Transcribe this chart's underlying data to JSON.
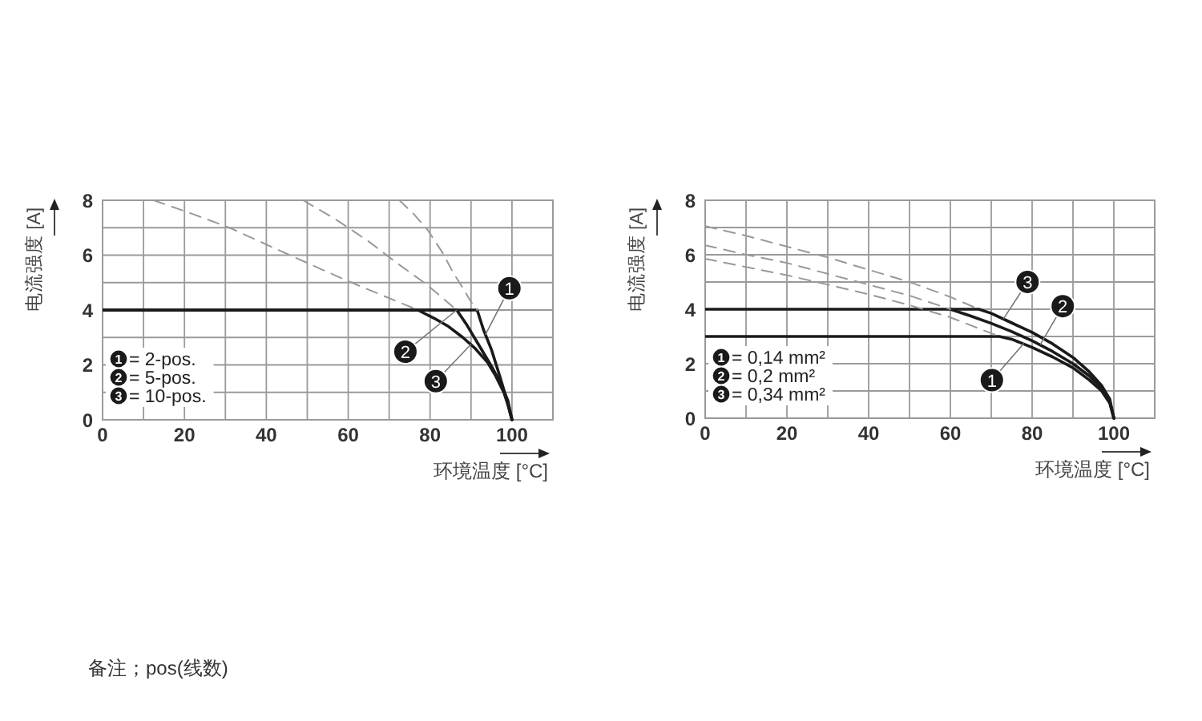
{
  "chart_data": [
    {
      "type": "line",
      "xlabel": "环境温度 [°C]",
      "ylabel": "电流强度 [A]",
      "xlim": [
        0,
        110
      ],
      "ylim": [
        0,
        8
      ],
      "xticks": [
        0,
        {
          "value": 10,
          "label": null
        },
        20,
        {
          "value": 30,
          "label": null
        },
        40,
        {
          "value": 50,
          "label": null
        },
        60,
        {
          "value": 70,
          "label": null
        },
        80,
        {
          "value": 90,
          "label": null
        },
        100,
        {
          "value": 110,
          "label": null
        }
      ],
      "yticks": [
        0,
        {
          "value": 1,
          "label": null
        },
        2,
        {
          "value": 3,
          "label": null
        },
        4,
        {
          "value": 5,
          "label": null
        },
        6,
        {
          "value": 7,
          "label": null
        },
        8
      ],
      "grid": true,
      "legend": "bottom left",
      "series": [
        {
          "name": "= 2-pos.",
          "color": "#1a1a1a",
          "x": [
            0,
            91.5,
            93,
            95,
            97,
            98.5,
            100
          ],
          "values": [
            4,
            4,
            3.3,
            2.55,
            1.6,
            0.85,
            0
          ]
        },
        {
          "name": "= 5-pos.",
          "color": "#1a1a1a",
          "x": [
            0,
            86.5,
            89,
            92,
            95,
            97,
            99,
            100
          ],
          "values": [
            4,
            4,
            3.45,
            2.7,
            1.95,
            1.4,
            0.7,
            0
          ]
        },
        {
          "name": "= 10-pos.",
          "color": "#1a1a1a",
          "x": [
            0,
            77,
            81,
            84.5,
            88,
            91,
            94,
            96,
            98,
            99,
            100
          ],
          "values": [
            4,
            4,
            3.7,
            3.4,
            3.0,
            2.6,
            2.1,
            1.6,
            1.0,
            0.55,
            0
          ]
        },
        {
          "color": "#999999",
          "line_style": "dashed",
          "x": [
            72.5,
            76,
            79.5,
            83,
            85.5,
            88,
            90,
            91.5
          ],
          "values": [
            8,
            7.5,
            6.9,
            6.1,
            5.4,
            4.8,
            4.3,
            4
          ]
        },
        {
          "color": "#999999",
          "line_style": "dashed",
          "x": [
            49,
            57,
            65,
            72,
            79,
            86.5
          ],
          "values": [
            8,
            7.3,
            6.5,
            5.7,
            4.95,
            4
          ]
        },
        {
          "color": "#999999",
          "line_style": "dashed",
          "x": [
            12.5,
            22,
            31,
            45,
            60,
            77
          ],
          "values": [
            8,
            7.5,
            7.0,
            6.05,
            5.05,
            4
          ]
        }
      ],
      "annotations": [
        {
          "text": "1",
          "x": 93.5,
          "y": 3.1
        },
        {
          "text": "2",
          "x": 86.5,
          "y": 4
        },
        {
          "text": "3",
          "x": 90,
          "y": 2.75
        },
        "备注；pos(线数)"
      ]
    },
    {
      "type": "line",
      "xlabel": "环境温度 [°C]",
      "ylabel": "电流强度 [A]",
      "xlim": [
        0,
        110
      ],
      "ylim": [
        0,
        8
      ],
      "xticks": [
        0,
        {
          "value": 10,
          "label": null
        },
        20,
        {
          "value": 30,
          "label": null
        },
        40,
        {
          "value": 50,
          "label": null
        },
        60,
        {
          "value": 70,
          "label": null
        },
        80,
        {
          "value": 90,
          "label": null
        },
        100,
        {
          "value": 110,
          "label": null
        }
      ],
      "yticks": [
        0,
        {
          "value": 1,
          "label": null
        },
        2,
        {
          "value": 3,
          "label": null
        },
        4,
        {
          "value": 5,
          "label": null
        },
        6,
        {
          "value": 7,
          "label": null
        },
        8
      ],
      "grid": true,
      "legend": "bottom left",
      "series": [
        {
          "name": "= 0,14 mm²",
          "color": "#1a1a1a",
          "x": [
            0,
            72,
            75,
            80,
            85,
            90,
            94,
            97,
            99,
            100
          ],
          "values": [
            3,
            3,
            2.9,
            2.6,
            2.25,
            1.85,
            1.4,
            1.0,
            0.55,
            0
          ]
        },
        {
          "name": "= 0,2 mm²",
          "color": "#1a1a1a",
          "x": [
            0,
            60,
            65,
            70,
            75,
            80,
            85,
            90,
            94,
            97,
            99,
            100
          ],
          "values": [
            4,
            4,
            3.75,
            3.48,
            3.18,
            2.84,
            2.45,
            2.0,
            1.55,
            1.1,
            0.6,
            0
          ]
        },
        {
          "name": "= 0,34 mm²",
          "color": "#1a1a1a",
          "x": [
            60,
            67,
            70,
            75,
            80,
            85,
            90,
            94,
            97,
            99,
            100
          ],
          "values": [
            4,
            4,
            3.85,
            3.5,
            3.15,
            2.73,
            2.23,
            1.7,
            1.2,
            0.7,
            0
          ]
        },
        {
          "color": "#999999",
          "line_style": "dashed",
          "x": [
            0,
            10,
            20,
            30,
            40,
            50,
            60,
            72
          ],
          "values": [
            5.85,
            5.55,
            5.25,
            4.9,
            4.55,
            4.15,
            3.7,
            3.0
          ]
        },
        {
          "color": "#999999",
          "line_style": "dashed",
          "x": [
            0,
            10,
            20,
            30,
            40,
            50,
            60
          ],
          "values": [
            6.35,
            6.0,
            5.7,
            5.3,
            4.9,
            4.5,
            4.0
          ]
        },
        {
          "color": "#999999",
          "line_style": "dashed",
          "x": [
            0,
            10,
            20,
            30,
            40,
            50,
            60,
            67
          ],
          "values": [
            7.05,
            6.7,
            6.3,
            5.9,
            5.45,
            5.0,
            4.45,
            4.0
          ]
        }
      ],
      "annotations": [
        {
          "text": "1",
          "x": 78,
          "y": 2.75
        },
        {
          "text": "2",
          "x": 82,
          "y": 2.7
        },
        {
          "text": "3",
          "x": 73,
          "y": 3.65
        }
      ]
    }
  ]
}
